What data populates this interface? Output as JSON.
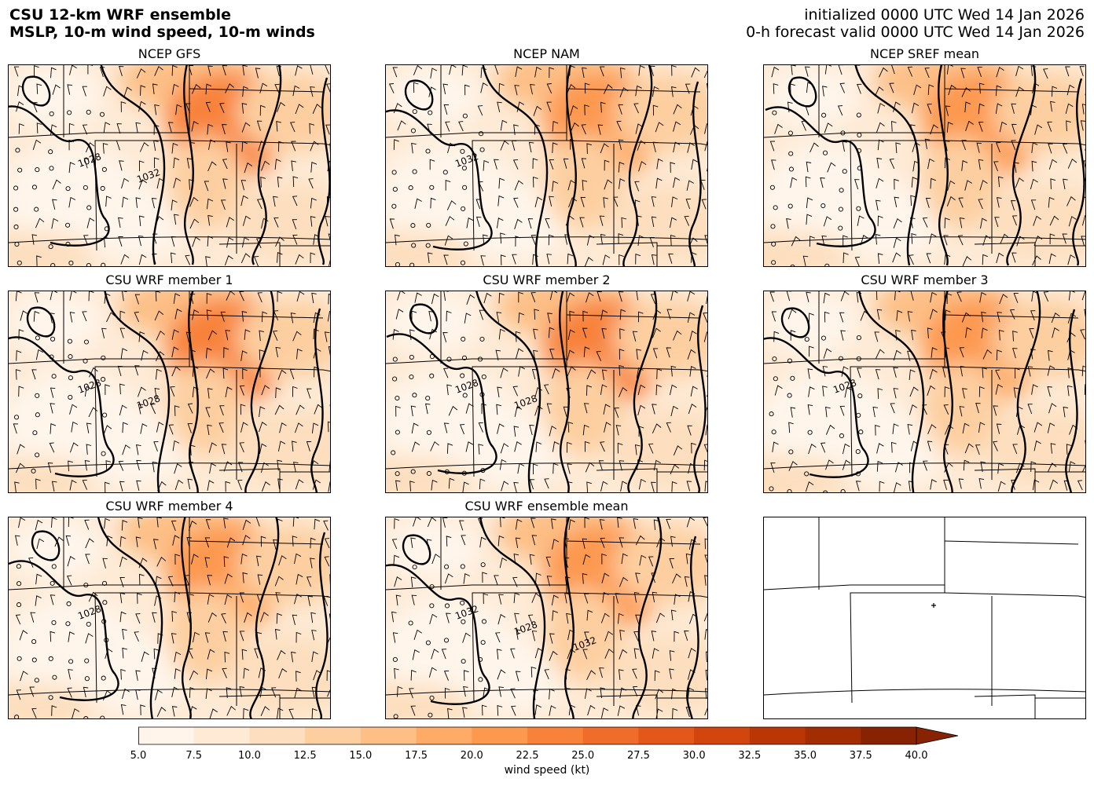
{
  "header": {
    "title_line1": "CSU 12-km WRF ensemble",
    "title_line2": "MSLP, 10-m wind speed, 10-m winds",
    "init_line": "initialized 0000 UTC Wed 14 Jan 2026",
    "valid_line": "0-h forecast valid 0000 UTC Wed 14 Jan 2026"
  },
  "panels": [
    {
      "title": "NCEP GFS",
      "labels": [
        "1028",
        "1032"
      ],
      "intensity": 1.0
    },
    {
      "title": "NCEP NAM",
      "labels": [
        "1032"
      ],
      "intensity": 0.5
    },
    {
      "title": "NCEP SREF mean",
      "labels": [],
      "intensity": 0.7
    },
    {
      "title": "CSU WRF member 1",
      "labels": [
        "1028",
        "1028"
      ],
      "intensity": 1.0
    },
    {
      "title": "CSU WRF member 2",
      "labels": [
        "1028",
        "1028"
      ],
      "intensity": 1.0
    },
    {
      "title": "CSU WRF member 3",
      "labels": [
        "1028"
      ],
      "intensity": 0.55
    },
    {
      "title": "CSU WRF member 4",
      "labels": [
        "1028"
      ],
      "intensity": 0.6
    },
    {
      "title": "CSU WRF ensemble mean",
      "labels": [
        "1032",
        "1028",
        "1032"
      ],
      "intensity": 0.7
    },
    {
      "title": "",
      "labels": [],
      "intensity": 0
    }
  ],
  "colorbar": {
    "label": "wind speed (kt)",
    "ticks": [
      "5.0",
      "7.5",
      "10.0",
      "12.5",
      "15.0",
      "17.5",
      "20.0",
      "22.5",
      "25.0",
      "27.5",
      "30.0",
      "32.5",
      "35.0",
      "37.5",
      "40.0"
    ],
    "colors": [
      "#fff5eb",
      "#feead5",
      "#fddfbf",
      "#fdcfa0",
      "#fdbf86",
      "#fdab67",
      "#fd984f",
      "#f8823a",
      "#ef6c2a",
      "#e3581a",
      "#d2450e",
      "#ba3605",
      "#a22d03",
      "#872303"
    ]
  }
}
